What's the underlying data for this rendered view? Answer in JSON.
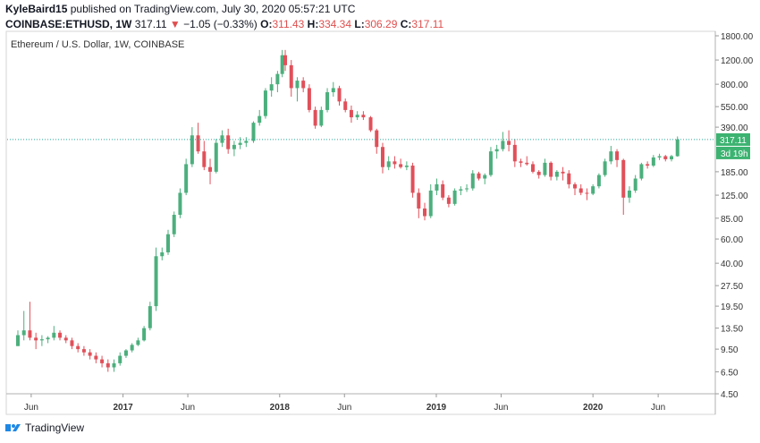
{
  "header": {
    "author": "KyleBaird15",
    "published": "published on TradingView.com, July 30, 2020 05:57:21 UTC",
    "symbol": "COINBASE:ETHUSD, 1W",
    "last": "317.11",
    "change_arrow": "▼",
    "change": "−1.05 (−0.33%)",
    "o_label": "O:",
    "o": "311.43",
    "h_label": "H:",
    "h": "334.34",
    "l_label": "L:",
    "l": "306.29",
    "c_label": "C:",
    "c": "317.11"
  },
  "footer": {
    "brand": "TradingView"
  },
  "colors": {
    "up": "#26a69a",
    "down": "#ef5350",
    "up_fill": "#4caf7d",
    "down_fill": "#e0505a",
    "price_line": "#26a69a"
  },
  "chart_data": {
    "type": "candlestick",
    "title": "Ethereum / U.S. Dollar, 1W, COINBASE",
    "scale": "log",
    "ylim": [
      4.5,
      1800
    ],
    "y_ticks": [
      "1800.00",
      "1200.00",
      "800.00",
      "550.00",
      "390.00",
      "185.00",
      "125.00",
      "85.00",
      "60.00",
      "40.00",
      "27.50",
      "19.50",
      "13.50",
      "9.50",
      "6.50",
      "4.50"
    ],
    "y_tick_values": [
      1800,
      1200,
      800,
      550,
      390,
      185,
      125,
      85,
      60,
      40,
      27.5,
      19.5,
      13.5,
      9.5,
      6.5,
      4.5
    ],
    "x_ticks": [
      "Jun",
      "2017",
      "Jun",
      "2018",
      "Jun",
      "2019",
      "Jun",
      "2020",
      "Jun"
    ],
    "x_tick_dates": [
      "2016-06-01",
      "2017-01-01",
      "2017-06-01",
      "2018-01-01",
      "2018-06-01",
      "2019-01-01",
      "2019-06-01",
      "2020-01-01",
      "2020-06-01"
    ],
    "x_range": [
      "2016-04-06",
      "2020-10-10"
    ],
    "grid": false,
    "last_price": {
      "value": 317.11,
      "label": "317.11",
      "countdown": "3d 19h"
    },
    "series": [
      [
        "2016-05-01",
        10,
        13,
        10,
        12
      ],
      [
        "2016-05-15",
        12,
        18,
        11,
        13
      ],
      [
        "2016-05-29",
        13,
        21,
        11,
        11.5
      ],
      [
        "2016-06-12",
        11.5,
        12.5,
        9.5,
        11
      ],
      [
        "2016-06-26",
        11,
        12,
        10,
        11.2
      ],
      [
        "2016-07-10",
        11.2,
        11.8,
        10.5,
        11.5
      ],
      [
        "2016-07-24",
        11.5,
        14,
        11,
        12.5
      ],
      [
        "2016-08-07",
        12.5,
        13,
        11,
        11.5
      ],
      [
        "2016-08-21",
        11.5,
        12,
        10.5,
        11
      ],
      [
        "2016-09-04",
        11,
        11.5,
        9.5,
        10
      ],
      [
        "2016-09-18",
        10,
        10.5,
        9,
        9.5
      ],
      [
        "2016-10-02",
        9.5,
        10,
        8.5,
        9
      ],
      [
        "2016-10-16",
        9,
        9.5,
        8,
        8.5
      ],
      [
        "2016-10-30",
        8.5,
        9,
        7.5,
        8
      ],
      [
        "2016-11-13",
        8,
        8.5,
        7,
        7.5
      ],
      [
        "2016-11-27",
        7.5,
        8,
        6.5,
        7
      ],
      [
        "2016-12-11",
        7,
        8,
        6.5,
        7.5
      ],
      [
        "2016-12-25",
        7.5,
        9,
        7.2,
        8.5
      ],
      [
        "2017-01-08",
        8.5,
        9.5,
        8.2,
        9.3
      ],
      [
        "2017-01-22",
        9.3,
        10.5,
        9,
        10.2
      ],
      [
        "2017-02-05",
        10.2,
        11.5,
        10,
        11
      ],
      [
        "2017-02-19",
        11,
        14,
        10.8,
        13.5
      ],
      [
        "2017-03-05",
        13.5,
        21,
        13,
        19.5
      ],
      [
        "2017-03-19",
        19.5,
        52,
        18,
        45
      ],
      [
        "2017-04-02",
        45,
        52,
        42,
        48
      ],
      [
        "2017-04-16",
        48,
        70,
        46,
        65
      ],
      [
        "2017-04-30",
        65,
        95,
        62,
        90
      ],
      [
        "2017-05-14",
        90,
        140,
        85,
        130
      ],
      [
        "2017-05-28",
        130,
        230,
        125,
        210
      ],
      [
        "2017-06-11",
        210,
        390,
        200,
        340
      ],
      [
        "2017-06-25",
        340,
        420,
        250,
        260
      ],
      [
        "2017-07-09",
        260,
        310,
        190,
        200
      ],
      [
        "2017-07-23",
        200,
        230,
        150,
        185
      ],
      [
        "2017-08-06",
        185,
        320,
        180,
        300
      ],
      [
        "2017-08-20",
        300,
        370,
        280,
        340
      ],
      [
        "2017-09-03",
        340,
        380,
        250,
        270
      ],
      [
        "2017-09-17",
        270,
        310,
        240,
        290
      ],
      [
        "2017-10-01",
        290,
        330,
        270,
        300
      ],
      [
        "2017-10-15",
        300,
        330,
        280,
        310
      ],
      [
        "2017-11-01",
        310,
        430,
        300,
        420
      ],
      [
        "2017-11-15",
        420,
        520,
        400,
        470
      ],
      [
        "2017-11-29",
        470,
        750,
        450,
        720
      ],
      [
        "2017-12-13",
        720,
        900,
        650,
        800
      ],
      [
        "2017-12-27",
        800,
        1000,
        700,
        950
      ],
      [
        "2018-01-07",
        950,
        1420,
        900,
        1300
      ],
      [
        "2018-01-14",
        1300,
        1420,
        1000,
        1100
      ],
      [
        "2018-01-28",
        1100,
        1200,
        650,
        750
      ],
      [
        "2018-02-11",
        750,
        900,
        600,
        850
      ],
      [
        "2018-02-25",
        850,
        900,
        700,
        750
      ],
      [
        "2018-03-11",
        750,
        800,
        500,
        520
      ],
      [
        "2018-03-25",
        520,
        550,
        380,
        400
      ],
      [
        "2018-04-08",
        400,
        550,
        390,
        520
      ],
      [
        "2018-04-22",
        520,
        750,
        500,
        700
      ],
      [
        "2018-05-06",
        700,
        830,
        650,
        750
      ],
      [
        "2018-05-20",
        750,
        780,
        560,
        600
      ],
      [
        "2018-06-03",
        600,
        630,
        500,
        520
      ],
      [
        "2018-06-17",
        520,
        560,
        420,
        460
      ],
      [
        "2018-07-01",
        460,
        510,
        440,
        480
      ],
      [
        "2018-07-15",
        480,
        510,
        440,
        460
      ],
      [
        "2018-08-01",
        460,
        470,
        360,
        370
      ],
      [
        "2018-08-15",
        370,
        380,
        250,
        280
      ],
      [
        "2018-08-29",
        280,
        300,
        180,
        200
      ],
      [
        "2018-09-12",
        200,
        240,
        190,
        220
      ],
      [
        "2018-09-26",
        220,
        240,
        195,
        210
      ],
      [
        "2018-10-10",
        210,
        230,
        195,
        200
      ],
      [
        "2018-10-24",
        200,
        220,
        190,
        205
      ],
      [
        "2018-11-07",
        205,
        215,
        120,
        130
      ],
      [
        "2018-11-21",
        130,
        140,
        85,
        100
      ],
      [
        "2018-12-05",
        100,
        110,
        82,
        88
      ],
      [
        "2018-12-19",
        88,
        150,
        85,
        135
      ],
      [
        "2019-01-02",
        135,
        165,
        125,
        150
      ],
      [
        "2019-01-16",
        150,
        160,
        115,
        120
      ],
      [
        "2019-01-30",
        120,
        125,
        102,
        108
      ],
      [
        "2019-02-13",
        108,
        140,
        105,
        135
      ],
      [
        "2019-02-27",
        135,
        145,
        125,
        138
      ],
      [
        "2019-03-13",
        138,
        150,
        132,
        140
      ],
      [
        "2019-03-27",
        140,
        190,
        135,
        180
      ],
      [
        "2019-04-10",
        180,
        185,
        160,
        165
      ],
      [
        "2019-04-24",
        165,
        180,
        150,
        175
      ],
      [
        "2019-05-08",
        175,
        280,
        170,
        260
      ],
      [
        "2019-05-22",
        260,
        290,
        230,
        270
      ],
      [
        "2019-06-05",
        270,
        360,
        260,
        310
      ],
      [
        "2019-06-19",
        310,
        370,
        260,
        290
      ],
      [
        "2019-07-03",
        290,
        320,
        200,
        220
      ],
      [
        "2019-07-17",
        220,
        230,
        200,
        215
      ],
      [
        "2019-07-31",
        215,
        240,
        205,
        210
      ],
      [
        "2019-08-14",
        210,
        220,
        180,
        185
      ],
      [
        "2019-08-28",
        185,
        190,
        165,
        175
      ],
      [
        "2019-09-11",
        175,
        230,
        170,
        215
      ],
      [
        "2019-09-25",
        215,
        220,
        160,
        170
      ],
      [
        "2019-10-09",
        170,
        190,
        160,
        185
      ],
      [
        "2019-10-23",
        185,
        200,
        160,
        180
      ],
      [
        "2019-11-06",
        180,
        190,
        140,
        150
      ],
      [
        "2019-11-20",
        150,
        155,
        125,
        140
      ],
      [
        "2019-12-04",
        140,
        150,
        125,
        130
      ],
      [
        "2019-12-18",
        130,
        140,
        115,
        128
      ],
      [
        "2020-01-01",
        128,
        150,
        125,
        145
      ],
      [
        "2020-01-15",
        145,
        180,
        140,
        175
      ],
      [
        "2020-01-29",
        175,
        230,
        170,
        220
      ],
      [
        "2020-02-12",
        220,
        285,
        210,
        260
      ],
      [
        "2020-02-26",
        260,
        270,
        200,
        225
      ],
      [
        "2020-03-12",
        225,
        230,
        90,
        120
      ],
      [
        "2020-03-26",
        120,
        145,
        110,
        135
      ],
      [
        "2020-04-09",
        135,
        175,
        130,
        165
      ],
      [
        "2020-04-23",
        165,
        215,
        160,
        210
      ],
      [
        "2020-05-07",
        210,
        220,
        195,
        205
      ],
      [
        "2020-05-21",
        205,
        245,
        200,
        235
      ],
      [
        "2020-06-04",
        235,
        250,
        225,
        240
      ],
      [
        "2020-06-18",
        240,
        245,
        220,
        228
      ],
      [
        "2020-07-02",
        228,
        245,
        220,
        240
      ],
      [
        "2020-07-16",
        240,
        334,
        238,
        318
      ]
    ]
  }
}
